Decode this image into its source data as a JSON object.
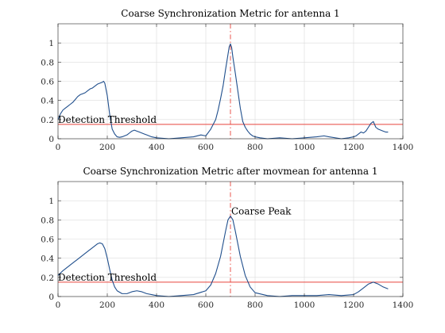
{
  "chart_data": [
    {
      "type": "line",
      "title": "Coarse Synchronization Metric for antenna 1",
      "xlim": [
        0,
        1400
      ],
      "ylim": [
        0,
        1.2
      ],
      "xticks": [
        0,
        200,
        400,
        600,
        800,
        1000,
        1200,
        1400
      ],
      "yticks": [
        0,
        0.2,
        0.4,
        0.6,
        0.8,
        1
      ],
      "xtick_labels": [
        "0",
        "200",
        "400",
        "600",
        "800",
        "1000",
        "1200",
        "1400"
      ],
      "ytick_labels": [
        "0",
        "0.2",
        "0.4",
        "0.6",
        "0.8",
        "1"
      ],
      "grid": true,
      "colors": {
        "metric": "#1f4e8c",
        "threshold": "#e8453c",
        "peak": "#e8453c"
      },
      "series": [
        {
          "x": [
            0,
            10,
            20,
            30,
            40,
            50,
            60,
            70,
            80,
            90,
            100,
            110,
            120,
            130,
            140,
            150,
            160,
            170,
            180,
            185,
            190,
            200,
            210,
            220,
            230,
            240,
            250,
            260,
            270,
            280,
            290,
            300,
            310,
            320,
            330,
            340,
            350,
            360,
            380,
            400,
            450,
            500,
            550,
            580,
            600,
            620,
            640,
            650,
            660,
            670,
            680,
            690,
            695,
            700,
            705,
            710,
            720,
            730,
            740,
            750,
            760,
            770,
            780,
            790,
            800,
            820,
            850,
            900,
            950,
            1000,
            1050,
            1080,
            1100,
            1150,
            1180,
            1200,
            1210,
            1220,
            1230,
            1240,
            1250,
            1260,
            1270,
            1280,
            1290,
            1300,
            1310,
            1320,
            1330,
            1340
          ],
          "y": [
            0.2,
            0.26,
            0.3,
            0.32,
            0.34,
            0.36,
            0.38,
            0.41,
            0.44,
            0.46,
            0.47,
            0.48,
            0.5,
            0.52,
            0.53,
            0.55,
            0.57,
            0.58,
            0.59,
            0.6,
            0.58,
            0.45,
            0.25,
            0.1,
            0.05,
            0.02,
            0.015,
            0.02,
            0.03,
            0.04,
            0.06,
            0.08,
            0.09,
            0.08,
            0.07,
            0.06,
            0.05,
            0.04,
            0.02,
            0.01,
            0.0,
            0.01,
            0.02,
            0.04,
            0.03,
            0.1,
            0.2,
            0.3,
            0.42,
            0.55,
            0.72,
            0.88,
            0.96,
            0.99,
            0.95,
            0.85,
            0.68,
            0.5,
            0.32,
            0.18,
            0.12,
            0.08,
            0.05,
            0.03,
            0.02,
            0.01,
            0.0,
            0.01,
            0.0,
            0.01,
            0.02,
            0.03,
            0.02,
            0.0,
            0.01,
            0.02,
            0.03,
            0.05,
            0.07,
            0.06,
            0.08,
            0.12,
            0.16,
            0.18,
            0.12,
            0.1,
            0.09,
            0.08,
            0.07,
            0.07
          ]
        }
      ],
      "threshold": 0.15,
      "peak_x": 700,
      "annotations": [
        {
          "text": "Detection Threshold",
          "x": 0,
          "y": 0.15
        }
      ]
    },
    {
      "type": "line",
      "title": "Coarse Synchronization Metric after movmean for antenna 1",
      "xlim": [
        0,
        1400
      ],
      "ylim": [
        0,
        1.2
      ],
      "xticks": [
        0,
        200,
        400,
        600,
        800,
        1000,
        1200,
        1400
      ],
      "yticks": [
        0,
        0.2,
        0.4,
        0.6,
        0.8,
        1
      ],
      "xtick_labels": [
        "0",
        "200",
        "400",
        "600",
        "800",
        "1000",
        "1200",
        "1400"
      ],
      "ytick_labels": [
        "0",
        "0.2",
        "0.4",
        "0.6",
        "0.8",
        "1"
      ],
      "grid": true,
      "colors": {
        "metric": "#1f4e8c",
        "threshold": "#e8453c",
        "peak": "#e8453c"
      },
      "series": [
        {
          "x": [
            0,
            20,
            40,
            60,
            80,
            100,
            120,
            140,
            160,
            170,
            180,
            190,
            200,
            210,
            220,
            230,
            240,
            260,
            280,
            300,
            320,
            340,
            360,
            380,
            400,
            450,
            500,
            550,
            600,
            620,
            640,
            660,
            680,
            690,
            700,
            710,
            720,
            740,
            760,
            780,
            800,
            850,
            900,
            950,
            1000,
            1050,
            1100,
            1150,
            1200,
            1220,
            1240,
            1260,
            1280,
            1300,
            1320,
            1340
          ],
          "y": [
            0.22,
            0.27,
            0.31,
            0.35,
            0.39,
            0.43,
            0.47,
            0.51,
            0.55,
            0.56,
            0.55,
            0.5,
            0.4,
            0.28,
            0.17,
            0.1,
            0.06,
            0.03,
            0.03,
            0.05,
            0.06,
            0.05,
            0.03,
            0.02,
            0.01,
            0.0,
            0.01,
            0.02,
            0.06,
            0.12,
            0.24,
            0.42,
            0.68,
            0.8,
            0.84,
            0.8,
            0.68,
            0.42,
            0.22,
            0.1,
            0.04,
            0.01,
            0.0,
            0.01,
            0.01,
            0.01,
            0.02,
            0.01,
            0.02,
            0.05,
            0.09,
            0.13,
            0.15,
            0.13,
            0.1,
            0.08
          ]
        }
      ],
      "threshold": 0.15,
      "peak_x": 700,
      "annotations": [
        {
          "text": "Detection Threshold",
          "x": 0,
          "y": 0.15
        },
        {
          "text": "Coarse Peak",
          "x": 700,
          "y": 0.84
        }
      ]
    }
  ]
}
